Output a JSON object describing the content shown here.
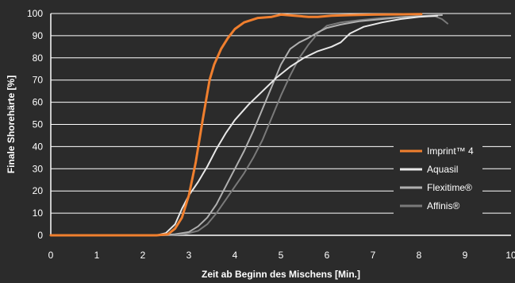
{
  "chart_data": {
    "type": "line",
    "title": "",
    "xlabel": "Zeit ab Beginn des Mischens [Min.]",
    "ylabel": "Finale Shorehärte [%]",
    "xlim": [
      0,
      10
    ],
    "ylim": [
      0,
      100
    ],
    "xticks": [
      "0",
      "1",
      "2",
      "3",
      "4",
      "5",
      "6",
      "7",
      "8",
      "9",
      "10"
    ],
    "yticks": [
      "0",
      "10",
      "20",
      "30",
      "40",
      "50",
      "60",
      "70",
      "80",
      "90",
      "100"
    ],
    "grid": "horizontal",
    "legend_position": "bottom-right",
    "background_color": "#2b2b2b",
    "series": [
      {
        "name": "Imprint™ 4",
        "color": "#f07f2e",
        "points": [
          [
            0,
            0
          ],
          [
            2.3,
            0
          ],
          [
            2.55,
            0.5
          ],
          [
            2.7,
            3
          ],
          [
            2.85,
            8
          ],
          [
            3.0,
            18
          ],
          [
            3.15,
            33
          ],
          [
            3.3,
            52
          ],
          [
            3.45,
            70
          ],
          [
            3.55,
            77
          ],
          [
            3.7,
            84
          ],
          [
            3.85,
            89
          ],
          [
            4.0,
            93
          ],
          [
            4.2,
            96
          ],
          [
            4.5,
            98
          ],
          [
            4.8,
            98.5
          ],
          [
            5.0,
            99.5
          ],
          [
            5.3,
            99
          ],
          [
            5.6,
            98.5
          ],
          [
            5.8,
            98.5
          ],
          [
            6.1,
            99
          ],
          [
            6.5,
            99.3
          ],
          [
            7,
            99.5
          ],
          [
            7.5,
            99.6
          ],
          [
            8.05,
            99.7
          ]
        ]
      },
      {
        "name": "Aquasil",
        "color": "#e8e8e8",
        "points": [
          [
            0,
            0
          ],
          [
            2.3,
            0
          ],
          [
            2.5,
            1
          ],
          [
            2.7,
            5
          ],
          [
            2.85,
            12
          ],
          [
            3.0,
            18
          ],
          [
            3.2,
            24
          ],
          [
            3.4,
            31
          ],
          [
            3.6,
            39
          ],
          [
            3.8,
            46
          ],
          [
            4.0,
            52
          ],
          [
            4.3,
            59
          ],
          [
            4.6,
            65
          ],
          [
            4.9,
            71
          ],
          [
            5.2,
            76
          ],
          [
            5.5,
            80
          ],
          [
            5.8,
            83
          ],
          [
            6.1,
            85
          ],
          [
            6.3,
            87
          ],
          [
            6.5,
            91
          ],
          [
            6.8,
            94
          ],
          [
            7.2,
            96
          ],
          [
            7.6,
            97.5
          ],
          [
            8.0,
            98.5
          ],
          [
            8.4,
            99
          ]
        ]
      },
      {
        "name": "Flexitime®",
        "color": "#b0b0b0",
        "points": [
          [
            0,
            0
          ],
          [
            2.4,
            0
          ],
          [
            2.7,
            0.5
          ],
          [
            3.0,
            1.5
          ],
          [
            3.2,
            4
          ],
          [
            3.4,
            8
          ],
          [
            3.6,
            14
          ],
          [
            3.8,
            22
          ],
          [
            4.0,
            30
          ],
          [
            4.2,
            38
          ],
          [
            4.4,
            47
          ],
          [
            4.6,
            57
          ],
          [
            4.8,
            67
          ],
          [
            5.0,
            77
          ],
          [
            5.2,
            84
          ],
          [
            5.4,
            87
          ],
          [
            5.6,
            89
          ],
          [
            5.8,
            91.5
          ],
          [
            6.0,
            93.5
          ],
          [
            6.3,
            95
          ],
          [
            6.7,
            96.5
          ],
          [
            7.2,
            97.5
          ],
          [
            7.7,
            98.5
          ],
          [
            8.2,
            99
          ],
          [
            8.5,
            99.3
          ]
        ]
      },
      {
        "name": "Affinis®",
        "color": "#7a7a7a",
        "points": [
          [
            0,
            0
          ],
          [
            2.5,
            0
          ],
          [
            2.9,
            0.5
          ],
          [
            3.2,
            2
          ],
          [
            3.4,
            5
          ],
          [
            3.6,
            10
          ],
          [
            3.8,
            16
          ],
          [
            4.0,
            22
          ],
          [
            4.2,
            28
          ],
          [
            4.4,
            35
          ],
          [
            4.6,
            43
          ],
          [
            4.8,
            53
          ],
          [
            5.0,
            63
          ],
          [
            5.2,
            72
          ],
          [
            5.4,
            80
          ],
          [
            5.6,
            86
          ],
          [
            5.8,
            91
          ],
          [
            6.0,
            94.5
          ],
          [
            6.3,
            96
          ],
          [
            6.7,
            97
          ],
          [
            7.2,
            98
          ],
          [
            7.7,
            98.5
          ],
          [
            8.1,
            98.7
          ],
          [
            8.35,
            98.7
          ],
          [
            8.5,
            97.5
          ],
          [
            8.62,
            95.5
          ]
        ]
      }
    ]
  }
}
